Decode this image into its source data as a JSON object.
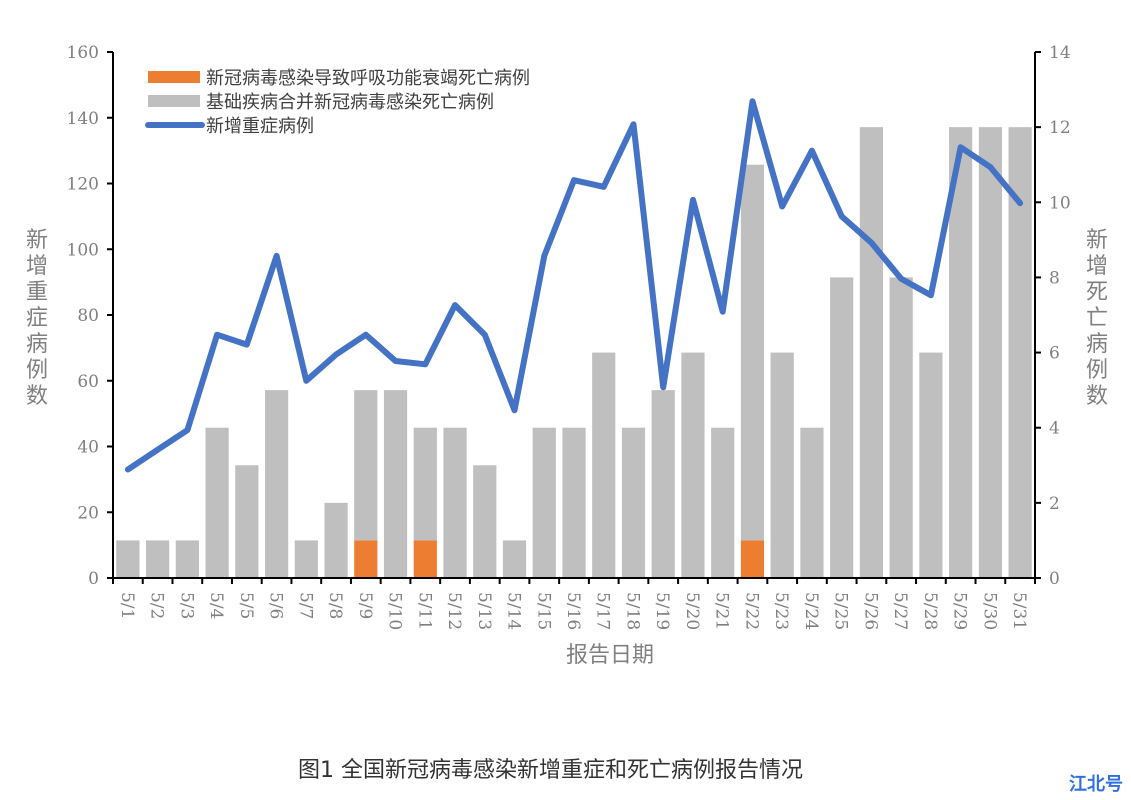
{
  "chart_data": {
    "type": "bar+line",
    "title": "图1 全国新冠病毒感染新增重症和死亡病例报告情况",
    "xlabel": "报告日期",
    "ylabel_left": "新增重症病例数",
    "ylabel_right": "新增死亡病例数",
    "ylim_left": [
      0,
      160
    ],
    "ylim_right": [
      0,
      14
    ],
    "yticks_left": [
      0,
      20,
      40,
      60,
      80,
      100,
      120,
      140,
      160
    ],
    "yticks_right": [
      0,
      2,
      4,
      6,
      8,
      10,
      12,
      14
    ],
    "grid": false,
    "legend_position": "top-left",
    "categories": [
      "5/1",
      "5/2",
      "5/3",
      "5/4",
      "5/5",
      "5/6",
      "5/7",
      "5/8",
      "5/9",
      "5/10",
      "5/11",
      "5/12",
      "5/13",
      "5/14",
      "5/15",
      "5/16",
      "5/17",
      "5/18",
      "5/19",
      "5/20",
      "5/21",
      "5/22",
      "5/23",
      "5/24",
      "5/25",
      "5/26",
      "5/27",
      "5/28",
      "5/29",
      "5/30",
      "5/31"
    ],
    "series": [
      {
        "name": "新冠病毒感染导致呼吸功能衰竭死亡病例",
        "type": "bar",
        "stack": "deaths",
        "axis": "right",
        "color": "#ed7d31",
        "values": [
          0,
          0,
          0,
          0,
          0,
          0,
          0,
          0,
          1,
          0,
          1,
          0,
          0,
          0,
          0,
          0,
          0,
          0,
          0,
          0,
          0,
          1,
          0,
          0,
          0,
          0,
          0,
          0,
          0,
          0,
          0
        ]
      },
      {
        "name": "基础疾病合并新冠病毒感染死亡病例",
        "type": "bar",
        "stack": "deaths",
        "axis": "right",
        "color": "#bfbfbf",
        "values": [
          1,
          1,
          1,
          4,
          3,
          5,
          1,
          2,
          4,
          5,
          3,
          4,
          3,
          1,
          4,
          4,
          6,
          4,
          5,
          6,
          4,
          10,
          6,
          4,
          8,
          12,
          8,
          6,
          12,
          12,
          12
        ]
      },
      {
        "name": "新增重症病例",
        "type": "line",
        "axis": "left",
        "color": "#4472c4",
        "values": [
          33,
          39,
          45,
          74,
          71,
          98,
          60,
          68,
          74,
          66,
          65,
          83,
          74,
          51,
          98,
          121,
          119,
          138,
          58,
          115,
          81,
          145,
          113,
          130,
          110,
          102,
          91,
          86,
          131,
          125,
          114
        ]
      }
    ]
  },
  "legend": {
    "items": [
      {
        "label": "新冠病毒感染导致呼吸功能衰竭死亡病例",
        "color": "#ed7d31",
        "shape": "bar"
      },
      {
        "label": "基础疾病合并新冠病毒感染死亡病例",
        "color": "#bfbfbf",
        "shape": "bar"
      },
      {
        "label": "新增重症病例",
        "color": "#4472c4",
        "shape": "line"
      }
    ]
  },
  "caption": "图1 全国新冠病毒感染新增重症和死亡病例报告情况",
  "watermark": "江北号"
}
